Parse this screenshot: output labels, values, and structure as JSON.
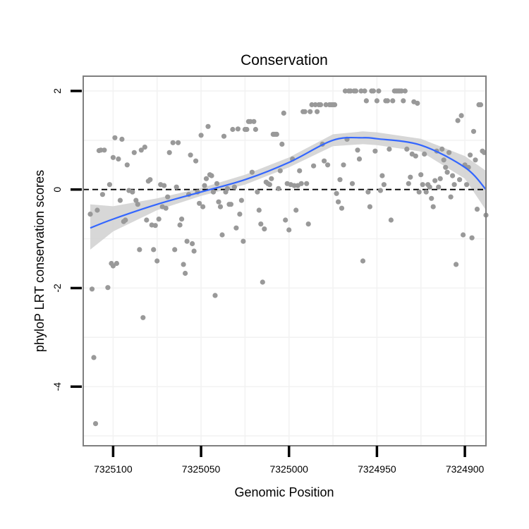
{
  "chart_data": {
    "type": "scatter",
    "title": "Conservation",
    "xlabel": "Genomic Position",
    "ylabel": "phyloP LRT conservation scores",
    "x_reversed": true,
    "xlim": [
      7325117,
      7324888
    ],
    "ylim": [
      -5.2,
      2.3
    ],
    "x_ticks": [
      7325100,
      7325050,
      7325000,
      7324950,
      7324900
    ],
    "y_ticks": [
      -4,
      -2,
      0,
      2
    ],
    "x_tick_labels": [
      "7325100",
      "7325050",
      "7325000",
      "7324950",
      "7324900"
    ],
    "y_tick_labels": [
      "-4",
      "-2",
      "0",
      "2"
    ],
    "reference_line": {
      "y": 0,
      "style": "dashed"
    },
    "grid": true,
    "colors": {
      "points": "#999999",
      "smooth": "#3366ff",
      "band": "#d3d3d3",
      "frame": "#7f7f7f",
      "grid": "#f2f2f2"
    },
    "points": [
      [
        7325113,
        -0.5
      ],
      [
        7325112,
        -2.02
      ],
      [
        7325111,
        -3.41
      ],
      [
        7325110,
        -4.75
      ],
      [
        7325109,
        -0.42
      ],
      [
        7325108,
        0.79
      ],
      [
        7325107,
        0.8
      ],
      [
        7325106,
        -0.1
      ],
      [
        7325105,
        0.8
      ],
      [
        7325103,
        -1.99
      ],
      [
        7325102,
        0.1
      ],
      [
        7325101,
        -1.5
      ],
      [
        7325100,
        0.65
      ],
      [
        7325100,
        -1.55
      ],
      [
        7325099,
        1.05
      ],
      [
        7325098,
        -1.5
      ],
      [
        7325097,
        0.62
      ],
      [
        7325096,
        -0.22
      ],
      [
        7325095,
        1.02
      ],
      [
        7325094,
        -0.65
      ],
      [
        7325093,
        -0.62
      ],
      [
        7325092,
        0.5
      ],
      [
        7325091,
        -0.02
      ],
      [
        7325089,
        -0.05
      ],
      [
        7325088,
        0.75
      ],
      [
        7325087,
        -0.22
      ],
      [
        7325086,
        -0.3
      ],
      [
        7325085,
        -1.22
      ],
      [
        7325084,
        0.8
      ],
      [
        7325083,
        -2.6
      ],
      [
        7325082,
        0.86
      ],
      [
        7325081,
        -0.62
      ],
      [
        7325080,
        0.17
      ],
      [
        7325079,
        0.2
      ],
      [
        7325078,
        -0.72
      ],
      [
        7325077,
        -1.22
      ],
      [
        7325076,
        -0.73
      ],
      [
        7325075,
        -1.45
      ],
      [
        7325074,
        -0.6
      ],
      [
        7325073,
        0.1
      ],
      [
        7325072,
        -0.35
      ],
      [
        7325071,
        0.08
      ],
      [
        7325070,
        -0.38
      ],
      [
        7325069,
        -0.15
      ],
      [
        7325068,
        0.75
      ],
      [
        7325066,
        0.95
      ],
      [
        7325065,
        -1.22
      ],
      [
        7325064,
        0.05
      ],
      [
        7325063,
        0.95
      ],
      [
        7325062,
        -0.72
      ],
      [
        7325061,
        -0.6
      ],
      [
        7325060,
        -1.52
      ],
      [
        7325059,
        -1.7
      ],
      [
        7325058,
        -1.05
      ],
      [
        7325057,
        -0.1
      ],
      [
        7325056,
        0.7
      ],
      [
        7325055,
        -1.1
      ],
      [
        7325054,
        -1.25
      ],
      [
        7325053,
        0.58
      ],
      [
        7325052,
        -0.05
      ],
      [
        7325051,
        -0.28
      ],
      [
        7325050,
        1.1
      ],
      [
        7325049,
        -0.35
      ],
      [
        7325048,
        0.08
      ],
      [
        7325047,
        0.22
      ],
      [
        7325046,
        1.28
      ],
      [
        7325045,
        0.3
      ],
      [
        7325044,
        0.28
      ],
      [
        7325043,
        -0.05
      ],
      [
        7325042,
        -2.15
      ],
      [
        7325041,
        0.12
      ],
      [
        7325040,
        -0.25
      ],
      [
        7325039,
        -0.35
      ],
      [
        7325038,
        -0.92
      ],
      [
        7325037,
        1.08
      ],
      [
        7325036,
        -0.05
      ],
      [
        7325035,
        0.02
      ],
      [
        7325034,
        -0.3
      ],
      [
        7325033,
        -0.3
      ],
      [
        7325032,
        1.22
      ],
      [
        7325031,
        0.05
      ],
      [
        7325030,
        -0.78
      ],
      [
        7325029,
        1.23
      ],
      [
        7325028,
        -0.5
      ],
      [
        7325027,
        -0.22
      ],
      [
        7325026,
        -1.05
      ],
      [
        7325025,
        1.22
      ],
      [
        7325024,
        1.22
      ],
      [
        7325023,
        1.38
      ],
      [
        7325022,
        1.38
      ],
      [
        7325021,
        0.35
      ],
      [
        7325020,
        1.38
      ],
      [
        7325019,
        1.22
      ],
      [
        7325018,
        -0.05
      ],
      [
        7325017,
        -0.42
      ],
      [
        7325016,
        -0.7
      ],
      [
        7325015,
        -1.88
      ],
      [
        7325014,
        -0.8
      ],
      [
        7325013,
        0.15
      ],
      [
        7325012,
        0.12
      ],
      [
        7325011,
        0.1
      ],
      [
        7325010,
        0.22
      ],
      [
        7325009,
        1.12
      ],
      [
        7325008,
        1.12
      ],
      [
        7325007,
        1.12
      ],
      [
        7325006,
        0.02
      ],
      [
        7325005,
        0.38
      ],
      [
        7325004,
        0.92
      ],
      [
        7325003,
        1.55
      ],
      [
        7325002,
        -0.62
      ],
      [
        7325001,
        0.12
      ],
      [
        7325000,
        -0.82
      ],
      [
        7324999,
        0.1
      ],
      [
        7324998,
        0.62
      ],
      [
        7324997,
        0.08
      ],
      [
        7324996,
        -0.42
      ],
      [
        7324995,
        0.08
      ],
      [
        7324994,
        0.38
      ],
      [
        7324993,
        0.12
      ],
      [
        7324992,
        1.58
      ],
      [
        7324991,
        1.58
      ],
      [
        7324990,
        0.12
      ],
      [
        7324989,
        -0.7
      ],
      [
        7324988,
        1.58
      ],
      [
        7324987,
        1.72
      ],
      [
        7324986,
        0.48
      ],
      [
        7324985,
        1.72
      ],
      [
        7324984,
        1.58
      ],
      [
        7324983,
        1.72
      ],
      [
        7324982,
        1.72
      ],
      [
        7324981,
        0.92
      ],
      [
        7324980,
        0.58
      ],
      [
        7324979,
        1.72
      ],
      [
        7324978,
        0.5
      ],
      [
        7324977,
        1.72
      ],
      [
        7324976,
        1.72
      ],
      [
        7324975,
        1.72
      ],
      [
        7324974,
        1.72
      ],
      [
        7324973,
        -0.08
      ],
      [
        7324972,
        -0.25
      ],
      [
        7324971,
        0.2
      ],
      [
        7324970,
        -0.38
      ],
      [
        7324969,
        0.5
      ],
      [
        7324968,
        2.0
      ],
      [
        7324967,
        1.02
      ],
      [
        7324966,
        2.0
      ],
      [
        7324965,
        2.0
      ],
      [
        7324964,
        0.12
      ],
      [
        7324963,
        2.0
      ],
      [
        7324962,
        2.0
      ],
      [
        7324961,
        0.8
      ],
      [
        7324960,
        0.62
      ],
      [
        7324959,
        2.0
      ],
      [
        7324958,
        -1.45
      ],
      [
        7324957,
        2.0
      ],
      [
        7324956,
        1.8
      ],
      [
        7324955,
        -0.05
      ],
      [
        7324954,
        -0.35
      ],
      [
        7324953,
        2.0
      ],
      [
        7324952,
        2.0
      ],
      [
        7324951,
        0.78
      ],
      [
        7324950,
        1.8
      ],
      [
        7324949,
        2.0
      ],
      [
        7324948,
        -0.02
      ],
      [
        7324947,
        0.28
      ],
      [
        7324946,
        0.1
      ],
      [
        7324945,
        1.8
      ],
      [
        7324944,
        1.8
      ],
      [
        7324943,
        0.82
      ],
      [
        7324942,
        -0.62
      ],
      [
        7324941,
        1.8
      ],
      [
        7324940,
        2.0
      ],
      [
        7324939,
        2.0
      ],
      [
        7324938,
        2.0
      ],
      [
        7324937,
        2.0
      ],
      [
        7324936,
        2.0
      ],
      [
        7324935,
        1.8
      ],
      [
        7324934,
        2.0
      ],
      [
        7324933,
        0.82
      ],
      [
        7324932,
        0.12
      ],
      [
        7324931,
        0.25
      ],
      [
        7324930,
        0.72
      ],
      [
        7324929,
        1.78
      ],
      [
        7324928,
        0.68
      ],
      [
        7324927,
        1.75
      ],
      [
        7324926,
        -0.05
      ],
      [
        7324925,
        0.3
      ],
      [
        7324924,
        0.1
      ],
      [
        7324923,
        0.72
      ],
      [
        7324922,
        -0.05
      ],
      [
        7324921,
        0.1
      ],
      [
        7324920,
        0.05
      ],
      [
        7324919,
        -0.18
      ],
      [
        7324918,
        -0.35
      ],
      [
        7324917,
        0.18
      ],
      [
        7324916,
        0.78
      ],
      [
        7324915,
        0.05
      ],
      [
        7324914,
        0.22
      ],
      [
        7324913,
        0.82
      ],
      [
        7324912,
        0.6
      ],
      [
        7324911,
        0.45
      ],
      [
        7324910,
        0.35
      ],
      [
        7324909,
        0.75
      ],
      [
        7324908,
        -0.15
      ],
      [
        7324907,
        0.28
      ],
      [
        7324906,
        0.1
      ],
      [
        7324905,
        -1.52
      ],
      [
        7324904,
        1.4
      ],
      [
        7324903,
        0.2
      ],
      [
        7324902,
        1.5
      ],
      [
        7324901,
        -0.92
      ],
      [
        7324900,
        0.5
      ],
      [
        7324899,
        0.1
      ],
      [
        7324898,
        0.45
      ],
      [
        7324897,
        0.7
      ],
      [
        7324896,
        -0.98
      ],
      [
        7324895,
        1.18
      ],
      [
        7324894,
        0.6
      ],
      [
        7324893,
        -0.4
      ],
      [
        7324892,
        1.72
      ],
      [
        7324891,
        1.72
      ],
      [
        7324890,
        0.78
      ],
      [
        7324889,
        0.75
      ],
      [
        7324888,
        -0.52
      ]
    ],
    "smooth": {
      "x": [
        7325113,
        7325100,
        7325075,
        7325050,
        7325025,
        7325000,
        7324975,
        7324958,
        7324950,
        7324925,
        7324900,
        7324888
      ],
      "y": [
        -0.78,
        -0.6,
        -0.3,
        -0.05,
        0.2,
        0.55,
        1.0,
        1.05,
        1.03,
        0.9,
        0.45,
        0.0
      ],
      "band_lo": [
        -1.22,
        -0.85,
        -0.42,
        -0.13,
        0.1,
        0.45,
        0.88,
        0.92,
        0.9,
        0.77,
        0.22,
        -0.42
      ],
      "band_hi": [
        -0.3,
        -0.34,
        -0.18,
        0.03,
        0.3,
        0.65,
        1.12,
        1.18,
        1.16,
        1.03,
        0.68,
        0.38
      ]
    }
  }
}
